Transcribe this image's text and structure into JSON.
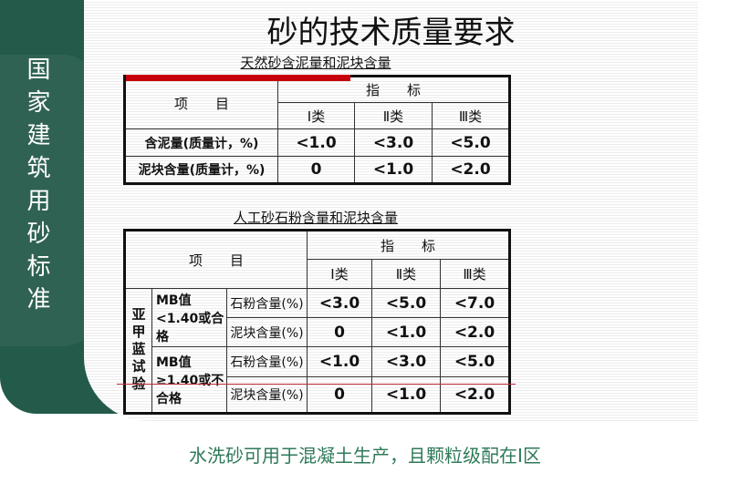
{
  "sidebar": {
    "title": "国家建筑用砂标准"
  },
  "slide": {
    "title": "砂的技术质量要求",
    "table1": {
      "caption": "天然砂含泥量和泥块含量",
      "header_item": "项　　目",
      "header_index": "指　　标",
      "classes": [
        "Ⅰ类",
        "Ⅱ类",
        "Ⅲ类"
      ],
      "rows": [
        {
          "label": "含泥量(质量计，%)",
          "values": [
            "<1.0",
            "<3.0",
            "<5.0"
          ]
        },
        {
          "label": "泥块含量(质量计，%)",
          "values": [
            "0",
            "<1.0",
            "<2.0"
          ]
        }
      ]
    },
    "table2": {
      "caption": "人工砂石粉含量和泥块含量",
      "header_item": "项　　目",
      "header_index": "指　　标",
      "classes": [
        "Ⅰ类",
        "Ⅱ类",
        "Ⅲ类"
      ],
      "group_label": "亚甲蓝试验",
      "groups": [
        {
          "condition": "MB值<1.40或合格",
          "rows": [
            {
              "label": "石粉含量(%)",
              "values": [
                "<3.0",
                "<5.0",
                "<7.0"
              ]
            },
            {
              "label": "泥块含量(%)",
              "values": [
                "0",
                "<1.0",
                "<2.0"
              ]
            }
          ]
        },
        {
          "condition": "MB值≥1.40或不合格",
          "rows": [
            {
              "label": "石粉含量(%)",
              "values": [
                "<1.0",
                "<3.0",
                "<5.0"
              ]
            },
            {
              "label": "泥块含量(%)",
              "values": [
                "0",
                "<1.0",
                "<2.0"
              ]
            }
          ]
        }
      ]
    }
  },
  "footer": {
    "text": "水洗砂可用于混凝土生产，且颗粒级配在Ⅰ区"
  },
  "colors": {
    "sidebar": "#245a4a",
    "footer_text": "#2e7a58",
    "accent_red": "#c8000a"
  }
}
